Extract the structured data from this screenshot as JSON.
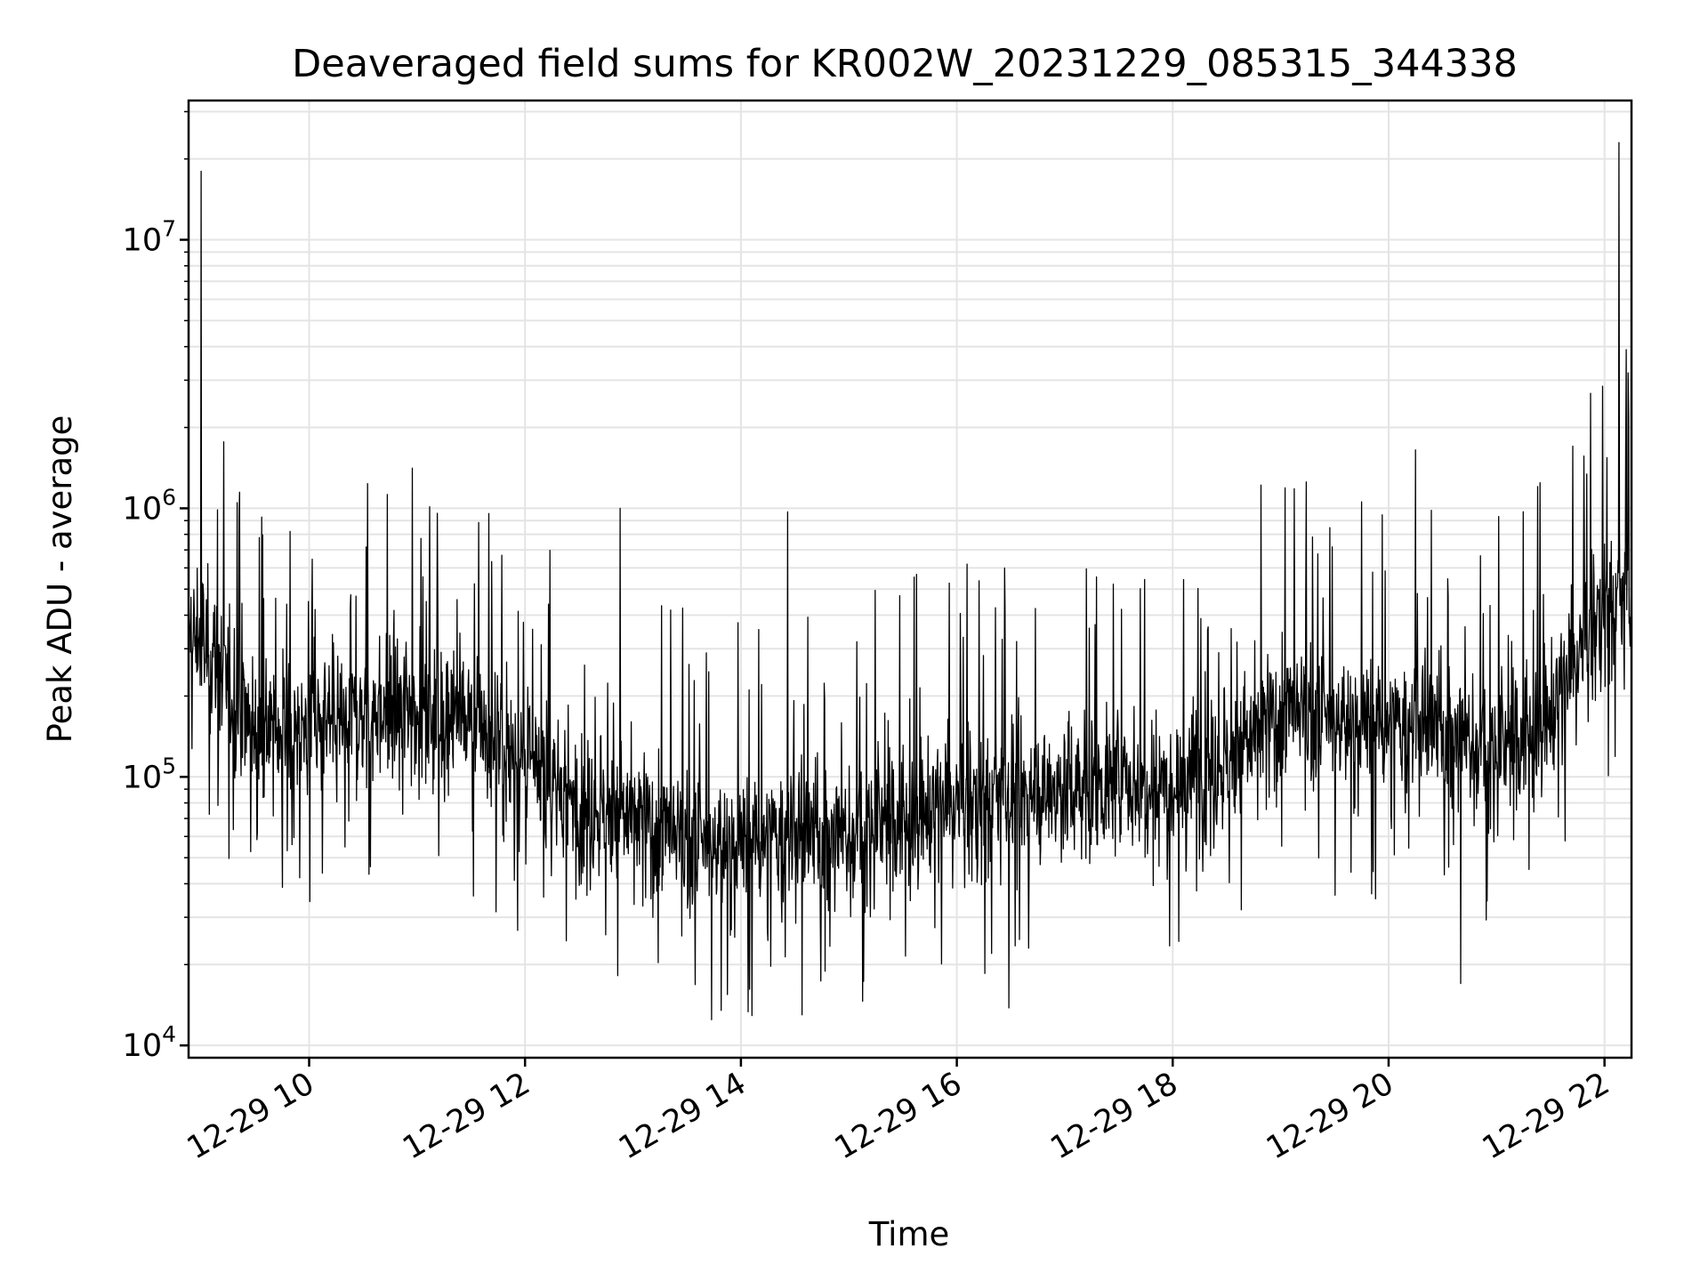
{
  "chart_data": {
    "type": "line",
    "title": "Deaveraged field sums for KR002W_20231229_085315_344338",
    "xlabel": "Time",
    "ylabel": "Peak ADU - average",
    "y_scale": "log",
    "grid": true,
    "legend": "none",
    "line_color": "#000000",
    "xlim": [
      "12-29 08:53",
      "12-29 22:15"
    ],
    "ylim": [
      9000,
      33000000
    ],
    "x_ticks": [
      "12-29 10",
      "12-29 12",
      "12-29 14",
      "12-29 16",
      "12-29 18",
      "12-29 20",
      "12-29 22"
    ],
    "y_ticks": [
      {
        "base": "10",
        "exp": "4",
        "value": 10000
      },
      {
        "base": "10",
        "exp": "5",
        "value": 100000
      },
      {
        "base": "10",
        "exp": "6",
        "value": 1000000
      },
      {
        "base": "10",
        "exp": "7",
        "value": 10000000
      }
    ],
    "series": [
      {
        "values_hourly_baseline": [
          {
            "t": "12-29 09:00",
            "y": 320000
          },
          {
            "t": "12-29 09:30",
            "y": 150000
          },
          {
            "t": "12-29 10:00",
            "y": 150000
          },
          {
            "t": "12-29 10:30",
            "y": 170000
          },
          {
            "t": "12-29 11:00",
            "y": 190000
          },
          {
            "t": "12-29 11:30",
            "y": 160000
          },
          {
            "t": "12-29 12:00",
            "y": 110000
          },
          {
            "t": "12-29 12:30",
            "y": 80000
          },
          {
            "t": "12-29 13:00",
            "y": 70000
          },
          {
            "t": "12-29 13:30",
            "y": 55000
          },
          {
            "t": "12-29 14:00",
            "y": 55000
          },
          {
            "t": "12-29 14:30",
            "y": 60000
          },
          {
            "t": "12-29 15:00",
            "y": 60000
          },
          {
            "t": "12-29 15:30",
            "y": 70000
          },
          {
            "t": "12-29 16:00",
            "y": 80000
          },
          {
            "t": "12-29 16:30",
            "y": 85000
          },
          {
            "t": "12-29 17:00",
            "y": 90000
          },
          {
            "t": "12-29 17:30",
            "y": 95000
          },
          {
            "t": "12-29 18:00",
            "y": 100000
          },
          {
            "t": "12-29 18:30",
            "y": 115000
          },
          {
            "t": "12-29 19:00",
            "y": 170000
          },
          {
            "t": "12-29 19:30",
            "y": 160000
          },
          {
            "t": "12-29 20:00",
            "y": 150000
          },
          {
            "t": "12-29 20:30",
            "y": 150000
          },
          {
            "t": "12-29 21:00",
            "y": 120000
          },
          {
            "t": "12-29 21:30",
            "y": 170000
          },
          {
            "t": "12-29 22:00",
            "y": 450000
          }
        ],
        "spikes": [
          {
            "t": "12-29 09:00",
            "y": 18000000
          },
          {
            "t": "12-29 09:20",
            "y": 1050000
          },
          {
            "t": "12-29 12:53",
            "y": 1000000
          },
          {
            "t": "12-29 14:26",
            "y": 970000
          },
          {
            "t": "12-29 18:49",
            "y": 1220000
          },
          {
            "t": "12-29 20:15",
            "y": 1650000
          },
          {
            "t": "12-29 22:08",
            "y": 23000000
          },
          {
            "t": "12-29 22:12",
            "y": 3900000
          }
        ],
        "dips": [
          {
            "t": "12-29 13:49",
            "y": 13500
          },
          {
            "t": "12-29 14:34",
            "y": 13000
          },
          {
            "t": "12-29 16:29",
            "y": 13800
          },
          {
            "t": "12-29 20:40",
            "y": 17000
          }
        ]
      }
    ]
  }
}
